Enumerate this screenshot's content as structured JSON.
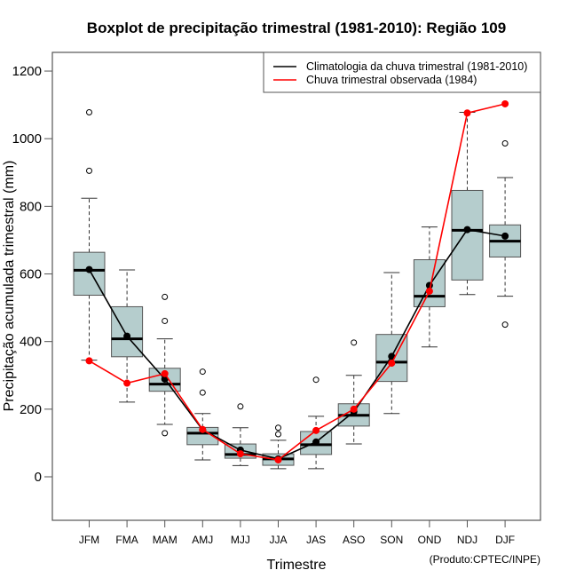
{
  "chart_data": {
    "type": "boxplot",
    "title": "Boxplot de precipitação trimestral (1981-2010): Região 109",
    "xlabel": "Trimestre",
    "ylabel": "Precipitação acumulada trimestral (mm)",
    "ylim": [
      -125,
      1250
    ],
    "yticks": [
      0,
      200,
      400,
      600,
      800,
      1000,
      1200
    ],
    "ytick_labels": [
      "0",
      "200",
      "400",
      "600",
      "800",
      "1000",
      "1200"
    ],
    "categories": [
      "JFM",
      "FMA",
      "MAM",
      "AMJ",
      "MJJ",
      "JJA",
      "JAS",
      "ASO",
      "SON",
      "OND",
      "NDJ",
      "DJF"
    ],
    "boxes": [
      {
        "category": "JFM",
        "whisker_low": 345,
        "q1": 537,
        "median": 611,
        "q3": 664,
        "whisker_high": 824,
        "outliers": [
          1078,
          905
        ]
      },
      {
        "category": "FMA",
        "whisker_low": 221,
        "q1": 355,
        "median": 408,
        "q3": 503,
        "whisker_high": 612,
        "outliers": []
      },
      {
        "category": "MAM",
        "whisker_low": 155,
        "q1": 253,
        "median": 274,
        "q3": 321,
        "whisker_high": 408,
        "outliers": [
          532,
          461,
          129
        ]
      },
      {
        "category": "AMJ",
        "whisker_low": 50,
        "q1": 95,
        "median": 129,
        "q3": 146,
        "whisker_high": 187,
        "outliers": [
          311,
          249
        ]
      },
      {
        "category": "MJJ",
        "whisker_low": 33,
        "q1": 55,
        "median": 66,
        "q3": 97,
        "whisker_high": 145,
        "outliers": [
          208
        ]
      },
      {
        "category": "JJA",
        "whisker_low": 24,
        "q1": 34,
        "median": 53,
        "q3": 68,
        "whisker_high": 108,
        "outliers": [
          145,
          126
        ]
      },
      {
        "category": "JAS",
        "whisker_low": 24,
        "q1": 66,
        "median": 95,
        "q3": 134,
        "whisker_high": 179,
        "outliers": [
          287
        ]
      },
      {
        "category": "ASO",
        "whisker_low": 97,
        "q1": 150,
        "median": 182,
        "q3": 216,
        "whisker_high": 300,
        "outliers": [
          397
        ]
      },
      {
        "category": "SON",
        "whisker_low": 187,
        "q1": 282,
        "median": 339,
        "q3": 421,
        "whisker_high": 604,
        "outliers": []
      },
      {
        "category": "OND",
        "whisker_low": 384,
        "q1": 503,
        "median": 534,
        "q3": 642,
        "whisker_high": 739,
        "outliers": []
      },
      {
        "category": "NDJ",
        "whisker_low": 539,
        "q1": 582,
        "median": 729,
        "q3": 847,
        "whisker_high": 1078,
        "outliers": []
      },
      {
        "category": "DJF",
        "whisker_low": 534,
        "q1": 650,
        "median": 697,
        "q3": 745,
        "whisker_high": 885,
        "outliers": [
          986,
          450
        ]
      }
    ],
    "series": [
      {
        "name": "Climatologia da chuva trimestral (1981-2010)",
        "color": "#000000",
        "values": [
          613,
          416,
          289,
          139,
          79,
          53,
          103,
          192,
          356,
          566,
          731,
          712
        ]
      },
      {
        "name": "Chuva trimestral observada (1984)",
        "color": "#ff0000",
        "values": [
          343,
          277,
          305,
          140,
          68,
          50,
          137,
          200,
          336,
          549,
          1076,
          1103
        ]
      }
    ],
    "box_fill": "#b5cdcd",
    "legend_position": "top-right",
    "grid": false,
    "credit": "(Produto:CPTEC/INPE)"
  }
}
